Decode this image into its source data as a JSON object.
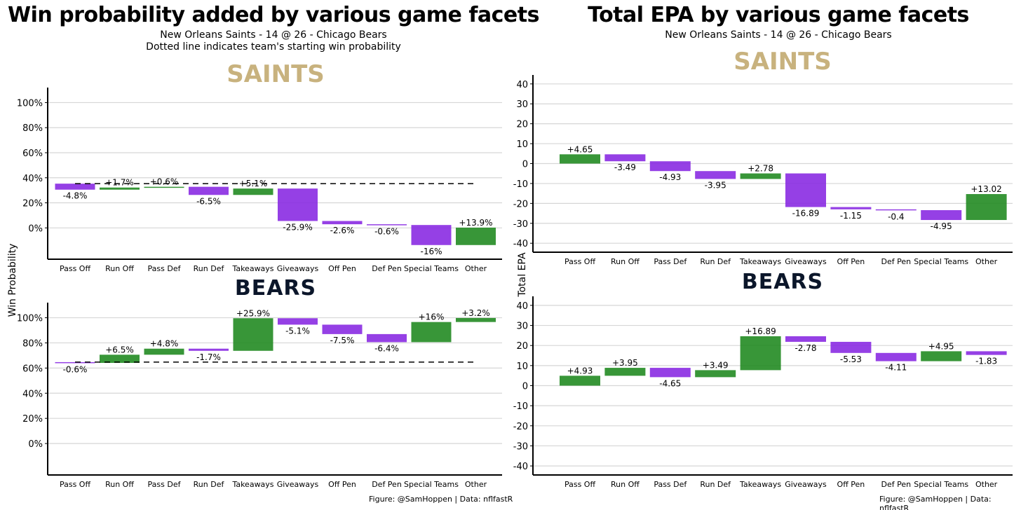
{
  "left": {
    "title": "Win probability added by various game facets",
    "subtitle1": "New Orleans Saints - 14 @ 26 - Chicago Bears",
    "subtitle2": "Dotted line indicates team's starting win probability",
    "ylabel": "Win Probability",
    "caption": "Figure: @SamHoppen | Data: nflfastR"
  },
  "right": {
    "title": "Total EPA by various game facets",
    "subtitle1": "New Orleans Saints - 14 @ 26 - Chicago Bears",
    "ylabel": "Total EPA",
    "caption": "Figure: @SamHoppen | Data: nflfastR"
  },
  "logos": {
    "saints": "SAINTS",
    "bears": "BEARS"
  },
  "colors": {
    "positive": "#228b22",
    "negative": "#8a2be2",
    "saints_gold": "#c8b27e",
    "bears_navy": "#0b162a"
  },
  "chart_data": [
    {
      "id": "wp-saints",
      "type": "bar",
      "subtype": "waterfall",
      "team": "Saints",
      "categories": [
        "Pass Off",
        "Run Off",
        "Pass Def",
        "Run Def",
        "Takeaways",
        "Giveaways",
        "Off Pen",
        "Def Pen",
        "Special Teams",
        "Other"
      ],
      "start": 35.3,
      "values": [
        -4.8,
        1.7,
        0.6,
        -6.5,
        5.1,
        -25.9,
        -2.6,
        -0.6,
        -16,
        13.9
      ],
      "labels": [
        "-4.8%",
        "+1.7%",
        "+0.6%",
        "-6.5%",
        "+5.1%",
        "-25.9%",
        "-2.6%",
        "-0.6%",
        "-16%",
        "+13.9%"
      ],
      "ylim": [
        -25,
        112
      ],
      "yticks": [
        0,
        20,
        40,
        60,
        80,
        100
      ],
      "ytick_labels": [
        "0%",
        "20%",
        "40%",
        "60%",
        "80%",
        "100%"
      ]
    },
    {
      "id": "wp-bears",
      "type": "bar",
      "subtype": "waterfall",
      "team": "Bears",
      "categories": [
        "Pass Off",
        "Run Off",
        "Pass Def",
        "Run Def",
        "Takeaways",
        "Giveaways",
        "Off Pen",
        "Def Pen",
        "Special Teams",
        "Other"
      ],
      "start": 64.7,
      "values": [
        -0.6,
        6.5,
        4.8,
        -1.7,
        25.9,
        -5.1,
        -7.5,
        -6.4,
        16,
        3.2
      ],
      "labels": [
        "-0.6%",
        "+6.5%",
        "+4.8%",
        "-1.7%",
        "+25.9%",
        "-5.1%",
        "-7.5%",
        "-6.4%",
        "+16%",
        "+3.2%"
      ],
      "ylim": [
        -25,
        112
      ],
      "yticks": [
        0,
        20,
        40,
        60,
        80,
        100
      ],
      "ytick_labels": [
        "0%",
        "20%",
        "40%",
        "60%",
        "80%",
        "100%"
      ]
    },
    {
      "id": "epa-saints",
      "type": "bar",
      "subtype": "waterfall",
      "team": "Saints",
      "categories": [
        "Pass Off",
        "Run Off",
        "Pass Def",
        "Run Def",
        "Takeaways",
        "Giveaways",
        "Off Pen",
        "Def Pen",
        "Special Teams",
        "Other"
      ],
      "start": 0,
      "values": [
        4.65,
        -3.49,
        -4.93,
        -3.95,
        2.78,
        -16.89,
        -1.15,
        -0.4,
        -4.95,
        13.02
      ],
      "labels": [
        "+4.65",
        "-3.49",
        "-4.93",
        "-3.95",
        "+2.78",
        "-16.89",
        "-1.15",
        "-0.4",
        "-4.95",
        "+13.02"
      ],
      "ylim": [
        -44.5,
        44.5
      ],
      "yticks": [
        -40,
        -30,
        -20,
        -10,
        0,
        10,
        20,
        30,
        40
      ],
      "ytick_labels": [
        "-40",
        "-30",
        "-20",
        "-10",
        "0",
        "10",
        "20",
        "30",
        "40"
      ]
    },
    {
      "id": "epa-bears",
      "type": "bar",
      "subtype": "waterfall",
      "team": "Bears",
      "categories": [
        "Pass Off",
        "Run Off",
        "Pass Def",
        "Run Def",
        "Takeaways",
        "Giveaways",
        "Off Pen",
        "Def Pen",
        "Special Teams",
        "Other"
      ],
      "start": 0,
      "values": [
        4.93,
        3.95,
        -4.65,
        3.49,
        16.89,
        -2.78,
        -5.53,
        -4.11,
        4.95,
        -1.83
      ],
      "labels": [
        "+4.93",
        "+3.95",
        "-4.65",
        "+3.49",
        "+16.89",
        "-2.78",
        "-5.53",
        "-4.11",
        "+4.95",
        "-1.83"
      ],
      "ylim": [
        -44.5,
        44.5
      ],
      "yticks": [
        -40,
        -30,
        -20,
        -10,
        0,
        10,
        20,
        30,
        40
      ],
      "ytick_labels": [
        "-40",
        "-30",
        "-20",
        "-10",
        "0",
        "10",
        "20",
        "30",
        "40"
      ]
    }
  ]
}
